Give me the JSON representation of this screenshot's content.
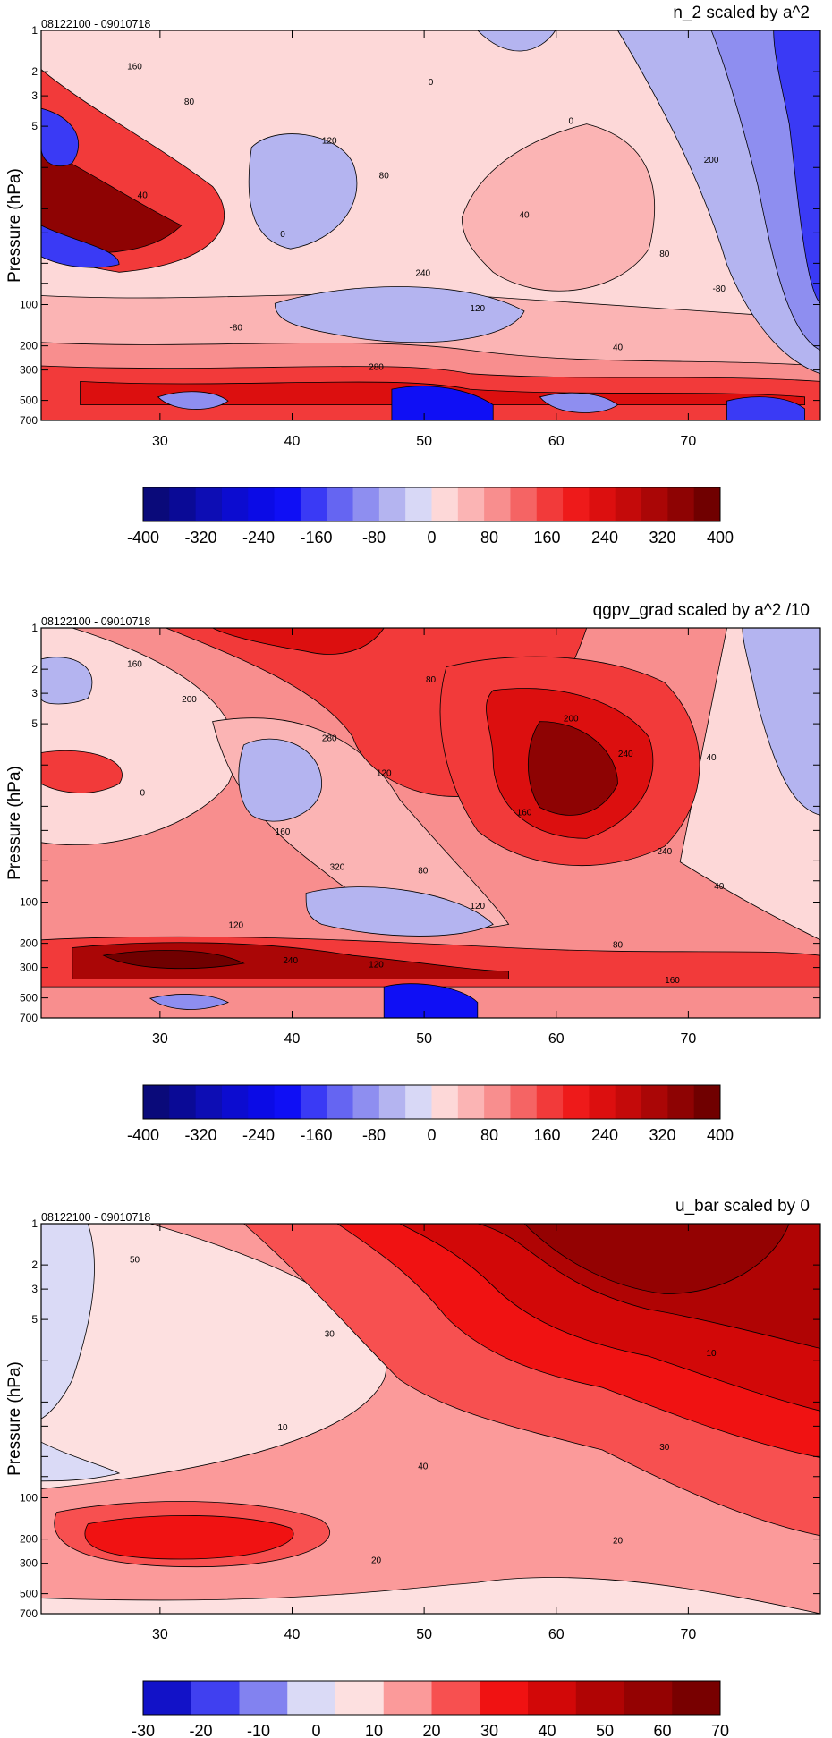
{
  "chart_data": [
    {
      "type": "contour",
      "title": "n_2 scaled by a^2",
      "time_range": "08122100 - 09010718",
      "ylabel": "Pressure (hPa)",
      "xlabel": "",
      "xlim": [
        21,
        80
      ],
      "xticks": [
        30,
        40,
        50,
        60,
        70
      ],
      "yscale": "log",
      "yticks": [
        1,
        2,
        3,
        5,
        10,
        20,
        30,
        50,
        70,
        100,
        200,
        300,
        500,
        700
      ],
      "ytick_labels_readable": [
        "1",
        "2",
        "3",
        "5",
        "100",
        "200",
        "300",
        "500",
        "700"
      ],
      "ylim": [
        700,
        1
      ],
      "colorbar": {
        "labels": [
          "-400",
          "-320",
          "-240",
          "-160",
          "-80",
          "0",
          "80",
          "160",
          "240",
          "320",
          "400"
        ],
        "colors": [
          "#0a0a7a",
          "#0a0a96",
          "#0d0db4",
          "#0c0cd0",
          "#0b0be6",
          "#0f0ff5",
          "#3a3af5",
          "#6565f2",
          "#8e8ef0",
          "#b4b4f0",
          "#d8d8f6",
          "#fdd8d8",
          "#fbb4b4",
          "#f88e8e",
          "#f56464",
          "#f23a3a",
          "#ee1a1a",
          "#dc0f0f",
          "#c40a0a",
          "#aa0606",
          "#8e0303",
          "#700000"
        ]
      },
      "contour_labels": [
        "160",
        "240",
        "200",
        "280",
        "80",
        "120",
        "40",
        "0",
        "0",
        "-80",
        "40",
        "80",
        "120",
        "40",
        "0",
        "-80",
        "80"
      ]
    },
    {
      "type": "contour",
      "title": "qgpv_grad scaled by a^2 /10",
      "time_range": "08122100 - 09010718",
      "ylabel": "Pressure (hPa)",
      "xlabel": "",
      "xlim": [
        21,
        80
      ],
      "xticks": [
        30,
        40,
        50,
        60,
        70
      ],
      "yscale": "log",
      "yticks": [
        1,
        2,
        3,
        5,
        10,
        20,
        30,
        50,
        70,
        100,
        200,
        300,
        500,
        700
      ],
      "ytick_labels_readable": [
        "1",
        "2",
        "3",
        "5",
        "100",
        "200",
        "300",
        "500",
        "700"
      ],
      "ylim": [
        700,
        1
      ],
      "colorbar": {
        "labels": [
          "-400",
          "-320",
          "-240",
          "-160",
          "-80",
          "0",
          "80",
          "160",
          "240",
          "320",
          "400"
        ],
        "colors": [
          "#0a0a7a",
          "#0a0a96",
          "#0d0db4",
          "#0c0cd0",
          "#0b0be6",
          "#0f0ff5",
          "#3a3af5",
          "#6565f2",
          "#8e8ef0",
          "#b4b4f0",
          "#d8d8f6",
          "#fdd8d8",
          "#fbb4b4",
          "#f88e8e",
          "#f56464",
          "#f23a3a",
          "#ee1a1a",
          "#dc0f0f",
          "#c40a0a",
          "#aa0606",
          "#8e0303",
          "#700000"
        ]
      },
      "contour_labels": [
        "160",
        "80",
        "40",
        "120",
        "240",
        "280",
        "80",
        "160",
        "200",
        "120",
        "160",
        "200",
        "120",
        "0",
        "80",
        "40",
        "120",
        "160",
        "320",
        "240",
        "240"
      ]
    },
    {
      "type": "contour",
      "title": "u_bar scaled by 0",
      "time_range": "08122100 - 09010718",
      "ylabel": "Pressure (hPa)",
      "xlabel": "",
      "xlim": [
        21,
        80
      ],
      "xticks": [
        30,
        40,
        50,
        60,
        70
      ],
      "yscale": "log",
      "yticks": [
        1,
        2,
        3,
        5,
        10,
        20,
        30,
        50,
        70,
        100,
        200,
        300,
        500,
        700
      ],
      "ytick_labels_readable": [
        "1",
        "2",
        "3",
        "5",
        "100",
        "200",
        "300",
        "500",
        "700"
      ],
      "ylim": [
        700,
        1
      ],
      "colorbar": {
        "labels": [
          "-30",
          "-20",
          "-10",
          "0",
          "10",
          "20",
          "30",
          "40",
          "50",
          "60",
          "70"
        ],
        "colors": [
          "#1212c8",
          "#4040f0",
          "#8282f0",
          "#dadaf6",
          "#fde0e0",
          "#fb9a9a",
          "#f75050",
          "#f01212",
          "#d20808",
          "#b00404",
          "#940202",
          "#780000"
        ]
      },
      "contour_labels": [
        "50",
        "40",
        "10",
        "20",
        "30",
        "30",
        "20",
        "10"
      ]
    }
  ]
}
